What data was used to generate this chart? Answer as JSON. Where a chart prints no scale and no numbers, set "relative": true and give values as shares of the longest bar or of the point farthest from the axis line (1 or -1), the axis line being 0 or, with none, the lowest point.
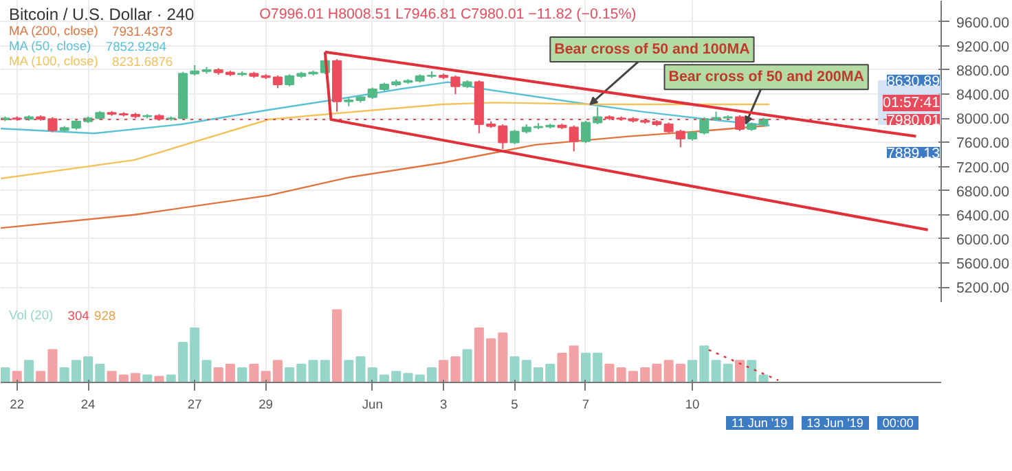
{
  "chart_data": [
    {
      "type": "candlestick",
      "title": "Bitcoin / U.S. Dollar · 240",
      "subtitle": "O7996.01 H8008.51 L7946.81 C7980.01 −11.82 (−0.15%)",
      "x": [
        "2019-05-21T16:00",
        "2019-05-22T00:00",
        "2019-05-22T08:00",
        "2019-05-22T16:00",
        "2019-05-23T00:00",
        "2019-05-23T08:00",
        "2019-05-23T16:00",
        "2019-05-24T00:00",
        "2019-05-24T08:00",
        "2019-05-24T16:00",
        "2019-05-25T00:00",
        "2019-05-25T08:00",
        "2019-05-25T16:00",
        "2019-05-26T00:00",
        "2019-05-26T08:00",
        "2019-05-26T16:00",
        "2019-05-27T00:00",
        "2019-05-27T08:00",
        "2019-05-27T16:00",
        "2019-05-28T00:00",
        "2019-05-28T08:00",
        "2019-05-28T16:00",
        "2019-05-29T00:00",
        "2019-05-29T08:00",
        "2019-05-29T16:00",
        "2019-05-30T00:00",
        "2019-05-30T08:00",
        "2019-05-30T16:00",
        "2019-05-31T00:00",
        "2019-05-31T08:00",
        "2019-05-31T16:00",
        "2019-06-01T00:00",
        "2019-06-01T08:00",
        "2019-06-01T16:00",
        "2019-06-02T00:00",
        "2019-06-02T08:00",
        "2019-06-02T16:00",
        "2019-06-03T00:00",
        "2019-06-03T08:00",
        "2019-06-03T16:00",
        "2019-06-04T00:00",
        "2019-06-04T08:00",
        "2019-06-04T16:00",
        "2019-06-05T00:00",
        "2019-06-05T08:00",
        "2019-06-05T16:00",
        "2019-06-06T00:00",
        "2019-06-06T08:00",
        "2019-06-06T16:00",
        "2019-06-07T00:00",
        "2019-06-07T08:00",
        "2019-06-07T16:00",
        "2019-06-08T00:00",
        "2019-06-08T08:00",
        "2019-06-08T16:00",
        "2019-06-09T00:00",
        "2019-06-09T08:00",
        "2019-06-09T16:00",
        "2019-06-10T00:00",
        "2019-06-10T08:00",
        "2019-06-10T16:00",
        "2019-06-11T00:00",
        "2019-06-11T08:00",
        "2019-06-11T16:00",
        "2019-06-12T00:00"
      ],
      "ohlc": [
        [
          7980,
          8030,
          7950,
          8000
        ],
        [
          8000,
          8030,
          7960,
          7990
        ],
        [
          7990,
          8050,
          7960,
          8020
        ],
        [
          8020,
          8050,
          7960,
          7990
        ],
        [
          7990,
          8020,
          7770,
          7800
        ],
        [
          7800,
          7870,
          7770,
          7840
        ],
        [
          7840,
          7980,
          7810,
          7950
        ],
        [
          7950,
          8030,
          7920,
          8000
        ],
        [
          8000,
          8120,
          7970,
          8090
        ],
        [
          8090,
          8120,
          8040,
          8070
        ],
        [
          8070,
          8100,
          8030,
          8060
        ],
        [
          8060,
          8090,
          8000,
          8030
        ],
        [
          8030,
          8070,
          8000,
          8040
        ],
        [
          8040,
          8070,
          7960,
          7990
        ],
        [
          7990,
          8030,
          7960,
          8000
        ],
        [
          8000,
          8770,
          7970,
          8740
        ],
        [
          8740,
          8880,
          8710,
          8780
        ],
        [
          8780,
          8850,
          8740,
          8800
        ],
        [
          8800,
          8830,
          8720,
          8760
        ],
        [
          8760,
          8790,
          8700,
          8730
        ],
        [
          8730,
          8780,
          8700,
          8740
        ],
        [
          8740,
          8770,
          8670,
          8700
        ],
        [
          8700,
          8730,
          8650,
          8680
        ],
        [
          8680,
          8710,
          8500,
          8560
        ],
        [
          8560,
          8730,
          8530,
          8700
        ],
        [
          8700,
          8770,
          8670,
          8740
        ],
        [
          8740,
          8790,
          8710,
          8760
        ],
        [
          8760,
          9020,
          8730,
          8950
        ],
        [
          8950,
          8980,
          8110,
          8280
        ],
        [
          8280,
          8340,
          8200,
          8300
        ],
        [
          8300,
          8380,
          8260,
          8350
        ],
        [
          8350,
          8510,
          8320,
          8480
        ],
        [
          8480,
          8590,
          8450,
          8560
        ],
        [
          8560,
          8640,
          8530,
          8600
        ],
        [
          8600,
          8650,
          8570,
          8620
        ],
        [
          8620,
          8730,
          8590,
          8700
        ],
        [
          8700,
          8780,
          8670,
          8710
        ],
        [
          8710,
          8740,
          8650,
          8680
        ],
        [
          8680,
          8710,
          8400,
          8530
        ],
        [
          8530,
          8630,
          8500,
          8600
        ],
        [
          8600,
          8630,
          7750,
          7900
        ],
        [
          7900,
          7950,
          7840,
          7870
        ],
        [
          7870,
          7900,
          7490,
          7600
        ],
        [
          7600,
          7810,
          7570,
          7780
        ],
        [
          7780,
          7900,
          7750,
          7850
        ],
        [
          7850,
          7920,
          7820,
          7860
        ],
        [
          7860,
          7910,
          7830,
          7880
        ],
        [
          7880,
          7910,
          7820,
          7850
        ],
        [
          7850,
          7880,
          7450,
          7620
        ],
        [
          7620,
          7960,
          7590,
          7930
        ],
        [
          7930,
          8190,
          7900,
          8020
        ],
        [
          8020,
          8050,
          7970,
          8000
        ],
        [
          8000,
          8030,
          7960,
          7990
        ],
        [
          7990,
          8020,
          7930,
          7960
        ],
        [
          7960,
          7990,
          7910,
          7940
        ],
        [
          7940,
          7970,
          7870,
          7900
        ],
        [
          7900,
          7930,
          7750,
          7780
        ],
        [
          7780,
          7810,
          7520,
          7660
        ],
        [
          7660,
          7790,
          7630,
          7760
        ],
        [
          7760,
          8020,
          7730,
          7990
        ],
        [
          7990,
          8110,
          7960,
          8010
        ],
        [
          8010,
          8050,
          7980,
          8020
        ],
        [
          8020,
          8050,
          7790,
          7820
        ],
        [
          7820,
          7930,
          7790,
          7900
        ],
        [
          7900,
          8008.51,
          7870,
          7980.01
        ]
      ],
      "colors": [
        "#53b987",
        "#eb4d5c",
        "#53b987",
        "#eb4d5c",
        "#eb4d5c",
        "#53b987",
        "#53b987",
        "#53b987",
        "#53b987",
        "#eb4d5c",
        "#eb4d5c",
        "#eb4d5c",
        "#53b987",
        "#eb4d5c",
        "#53b987",
        "#53b987",
        "#53b987",
        "#53b987",
        "#eb4d5c",
        "#eb4d5c",
        "#53b987",
        "#eb4d5c",
        "#eb4d5c",
        "#eb4d5c",
        "#53b987",
        "#53b987",
        "#53b987",
        "#53b987",
        "#eb4d5c",
        "#53b987",
        "#53b987",
        "#53b987",
        "#53b987",
        "#53b987",
        "#53b987",
        "#53b987",
        "#53b987",
        "#eb4d5c",
        "#eb4d5c",
        "#53b987",
        "#eb4d5c",
        "#eb4d5c",
        "#eb4d5c",
        "#53b987",
        "#53b987",
        "#53b987",
        "#53b987",
        "#eb4d5c",
        "#eb4d5c",
        "#53b987",
        "#53b987",
        "#eb4d5c",
        "#eb4d5c",
        "#eb4d5c",
        "#eb4d5c",
        "#eb4d5c",
        "#eb4d5c",
        "#eb4d5c",
        "#53b987",
        "#53b987",
        "#53b987",
        "#53b987",
        "#eb4d5c",
        "#53b987",
        "#53b987"
      ],
      "xlim": [
        "2019-05-21T13:00",
        "2019-06-17T00:00"
      ],
      "ylim": [
        4940,
        9950
      ],
      "yticks": [
        {
          "value": 5200,
          "label": "5200.00"
        },
        {
          "value": 5600,
          "label": "5600.00"
        },
        {
          "value": 6000,
          "label": "6000.00"
        },
        {
          "value": 6400,
          "label": "6400.00"
        },
        {
          "value": 6800,
          "label": "6800.00"
        },
        {
          "value": 7200,
          "label": "7200.00"
        },
        {
          "value": 7600,
          "label": "7600.00"
        },
        {
          "value": 8000,
          "label": "8000.00"
        },
        {
          "value": 8400,
          "label": "8400.00"
        },
        {
          "value": 8800,
          "label": "8800.00"
        },
        {
          "value": 9200,
          "label": "9200.00"
        },
        {
          "value": 9600,
          "label": "9600.00"
        }
      ],
      "grid": true,
      "legend": "top left",
      "tick_labels": "y",
      "series": [
        {
          "name": "MA (200, close)",
          "type": "line",
          "color": "#e0743f",
          "x": [
            "2019-05-21T13:00",
            "2019-05-25T07:30",
            "2019-05-29T02:00",
            "2019-05-31T08:00",
            "2019-06-02T23:00",
            "2019-06-05T14:00",
            "2019-06-08T05:00",
            "2019-06-10T02:00",
            "2019-06-12T04:00"
          ],
          "values": [
            6180,
            6400,
            6720,
            7020,
            7260,
            7560,
            7700,
            7780,
            7880
          ]
        },
        {
          "name": "MA (50, close)",
          "type": "line",
          "color": "#5bc2d6",
          "x": [
            "2019-05-21T13:00",
            "2019-05-24T04:00",
            "2019-05-26T15:00",
            "2019-05-29T02:00",
            "2019-05-30T23:00",
            "2019-06-01T20:00",
            "2019-06-03T03:00",
            "2019-06-04T02:00",
            "2019-06-07T02:00",
            "2019-06-08T14:00",
            "2019-06-10T11:00",
            "2019-06-12T04:00"
          ],
          "values": [
            7830,
            7750,
            7900,
            8140,
            8310,
            8490,
            8600,
            8490,
            8230,
            8110,
            7980,
            7880
          ]
        },
        {
          "name": "MA (100, close)",
          "type": "line",
          "color": "#f2c25b",
          "x": [
            "2019-05-21T13:00",
            "2019-05-25T07:30",
            "2019-05-29T02:00",
            "2019-05-30T23:00",
            "2019-06-02T23:00",
            "2019-06-04T11:00",
            "2019-06-07T11:00",
            "2019-06-10T02:00",
            "2019-06-12T04:00"
          ],
          "values": [
            7000,
            7310,
            7980,
            8080,
            8230,
            8260,
            8230,
            8230,
            8230
          ]
        },
        {
          "type": "line",
          "color": "#e0303a",
          "x": [
            "2019-05-30T16:00",
            "2019-06-16T07:00"
          ],
          "values": [
            9100,
            7700
          ]
        },
        {
          "type": "line",
          "color": "#e0303a",
          "x": [
            "2019-05-30T16:00",
            "2019-05-30T20:00",
            "2019-06-16T15:00"
          ],
          "values": [
            9100,
            7980,
            6150
          ]
        }
      ],
      "ref_lines": [
        {
          "axis": "y",
          "value": 7980.01,
          "label": "7980.01",
          "color": "#e84c5c",
          "line_style": "dotted"
        }
      ],
      "bands": [
        {
          "axis": "y",
          "from": 7889.13,
          "to": 8630.89,
          "color": "#c5d9f1"
        }
      ],
      "annotations": [
        {
          "text": "Bear cross of 50 and 100MA",
          "x": "2019-06-07T03:00",
          "y": 8230
        },
        {
          "text": "Bear cross of 50 and 200MA",
          "x": "2019-06-11T12:00",
          "y": 7910
        },
        "7931.4373",
        "7852.9294",
        "8231.6876",
        "01:57:41",
        "8630.89",
        "7889.13"
      ]
    },
    {
      "type": "bar",
      "relative": true,
      "grid": "x",
      "legend": "top left",
      "tick_labels": "x",
      "xlim": [
        "2019-05-21T13:00",
        "2019-06-17T00:00"
      ],
      "xticks": [
        {
          "value": "2019-05-22",
          "label": "22"
        },
        {
          "value": "2019-05-24",
          "label": "24"
        },
        {
          "value": "2019-05-27",
          "label": "27"
        },
        {
          "value": "2019-05-29",
          "label": "29"
        },
        {
          "value": "2019-06-01",
          "label": "Jun"
        },
        {
          "value": "2019-06-03",
          "label": "3"
        },
        {
          "value": "2019-06-05",
          "label": "5"
        },
        {
          "value": "2019-06-07",
          "label": "7"
        },
        {
          "value": "2019-06-10",
          "label": "10"
        }
      ],
      "x": [
        "2019-05-21T16:00",
        "2019-05-22T00:00",
        "2019-05-22T08:00",
        "2019-05-22T16:00",
        "2019-05-23T00:00",
        "2019-05-23T08:00",
        "2019-05-23T16:00",
        "2019-05-24T00:00",
        "2019-05-24T08:00",
        "2019-05-24T16:00",
        "2019-05-25T00:00",
        "2019-05-25T08:00",
        "2019-05-25T16:00",
        "2019-05-26T00:00",
        "2019-05-26T08:00",
        "2019-05-26T16:00",
        "2019-05-27T00:00",
        "2019-05-27T08:00",
        "2019-05-27T16:00",
        "2019-05-28T00:00",
        "2019-05-28T08:00",
        "2019-05-28T16:00",
        "2019-05-29T00:00",
        "2019-05-29T08:00",
        "2019-05-29T16:00",
        "2019-05-30T00:00",
        "2019-05-30T08:00",
        "2019-05-30T16:00",
        "2019-05-31T00:00",
        "2019-05-31T08:00",
        "2019-05-31T16:00",
        "2019-06-01T00:00",
        "2019-06-01T08:00",
        "2019-06-01T16:00",
        "2019-06-02T00:00",
        "2019-06-02T08:00",
        "2019-06-02T16:00",
        "2019-06-03T00:00",
        "2019-06-03T08:00",
        "2019-06-03T16:00",
        "2019-06-04T00:00",
        "2019-06-04T08:00",
        "2019-06-04T16:00",
        "2019-06-05T00:00",
        "2019-06-05T08:00",
        "2019-06-05T16:00",
        "2019-06-06T00:00",
        "2019-06-06T08:00",
        "2019-06-06T16:00",
        "2019-06-07T00:00",
        "2019-06-07T08:00",
        "2019-06-07T16:00",
        "2019-06-08T00:00",
        "2019-06-08T08:00",
        "2019-06-08T16:00",
        "2019-06-09T00:00",
        "2019-06-09T08:00",
        "2019-06-09T16:00",
        "2019-06-10T00:00",
        "2019-06-10T08:00",
        "2019-06-10T16:00",
        "2019-06-11T00:00",
        "2019-06-11T08:00",
        "2019-06-11T16:00",
        "2019-06-12T00:00"
      ],
      "series": [
        {
          "name": "Vol (20)",
          "type": "bar",
          "colors": [
            "#96d6c8",
            "#f2a2a4",
            "#96d6c8",
            "#f2a2a4",
            "#f2a2a4",
            "#96d6c8",
            "#96d6c8",
            "#96d6c8",
            "#96d6c8",
            "#f2a2a4",
            "#f2a2a4",
            "#f2a2a4",
            "#96d6c8",
            "#f2a2a4",
            "#96d6c8",
            "#96d6c8",
            "#96d6c8",
            "#96d6c8",
            "#f2a2a4",
            "#f2a2a4",
            "#96d6c8",
            "#f2a2a4",
            "#f2a2a4",
            "#f2a2a4",
            "#96d6c8",
            "#96d6c8",
            "#96d6c8",
            "#96d6c8",
            "#f2a2a4",
            "#96d6c8",
            "#96d6c8",
            "#96d6c8",
            "#96d6c8",
            "#96d6c8",
            "#96d6c8",
            "#96d6c8",
            "#96d6c8",
            "#f2a2a4",
            "#f2a2a4",
            "#96d6c8",
            "#f2a2a4",
            "#f2a2a4",
            "#f2a2a4",
            "#96d6c8",
            "#96d6c8",
            "#96d6c8",
            "#96d6c8",
            "#f2a2a4",
            "#f2a2a4",
            "#96d6c8",
            "#96d6c8",
            "#f2a2a4",
            "#f2a2a4",
            "#f2a2a4",
            "#f2a2a4",
            "#f2a2a4",
            "#f2a2a4",
            "#f2a2a4",
            "#96d6c8",
            "#96d6c8",
            "#96d6c8",
            "#96d6c8",
            "#f2a2a4",
            "#96d6c8",
            "#96d6c8"
          ],
          "values": [
            0.2,
            0.15,
            0.3,
            0.15,
            0.45,
            0.2,
            0.3,
            0.35,
            0.25,
            0.15,
            0.1,
            0.12,
            0.1,
            0.08,
            0.1,
            0.55,
            0.75,
            0.3,
            0.2,
            0.25,
            0.2,
            0.25,
            0.15,
            0.3,
            0.2,
            0.25,
            0.3,
            0.3,
            1.0,
            0.3,
            0.35,
            0.2,
            0.1,
            0.15,
            0.12,
            0.1,
            0.2,
            0.3,
            0.35,
            0.45,
            0.75,
            0.6,
            0.68,
            0.35,
            0.3,
            0.2,
            0.25,
            0.4,
            0.5,
            0.4,
            0.4,
            0.25,
            0.2,
            0.15,
            0.2,
            0.25,
            0.3,
            0.25,
            0.3,
            0.5,
            0.3,
            0.25,
            0.3,
            0.3,
            0.1
          ]
        },
        {
          "type": "line",
          "color": "#e0303a",
          "line_style": "dotted",
          "x": [
            "2019-06-10T11:00",
            "2019-06-12T10:00"
          ],
          "values": [
            0.45,
            0.03
          ]
        }
      ],
      "annotations": [
        "304",
        "928",
        "11 Jun '19",
        "13 Jun '19",
        "00:00"
      ]
    }
  ]
}
